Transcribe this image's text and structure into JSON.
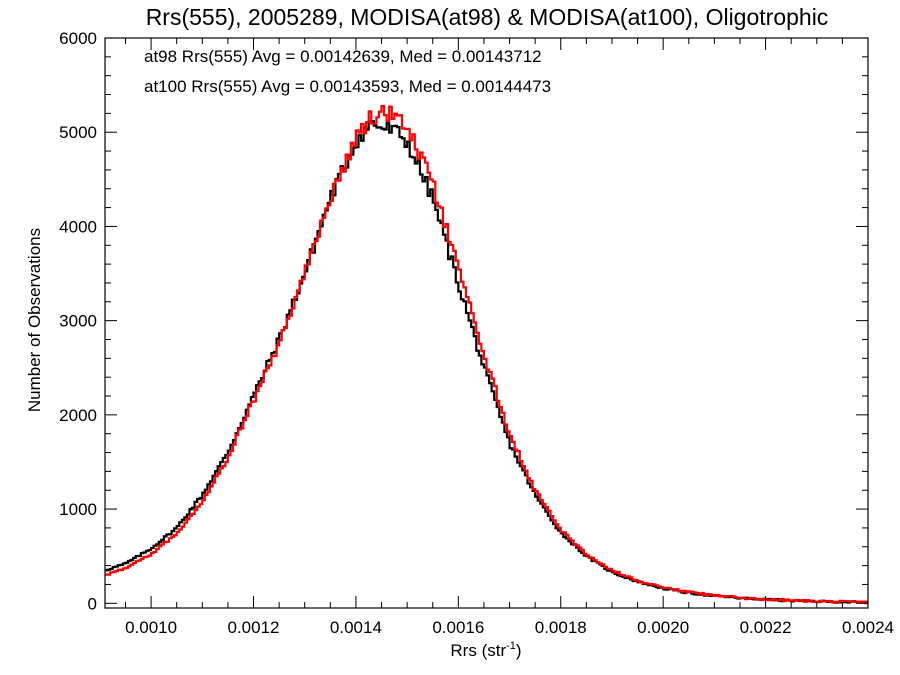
{
  "chart_data": {
    "type": "line",
    "title": "Rrs(555), 2005289, MODISA(at98) & MODISA(at100), Oligotrophic",
    "xlabel_main": "Rrs (str",
    "xlabel_sup": "-1",
    "xlabel_close": ")",
    "ylabel": "Number of Observations",
    "xlim": [
      0.00091,
      0.0024
    ],
    "ylim": [
      -50,
      6000
    ],
    "xticks": [
      0.001,
      0.0012,
      0.0014,
      0.0016,
      0.0018,
      0.002,
      0.0022,
      0.0024
    ],
    "xtick_labels": [
      "0.0010",
      "0.0012",
      "0.0014",
      "0.0016",
      "0.0018",
      "0.0020",
      "0.0022",
      "0.0024"
    ],
    "yticks": [
      0,
      1000,
      2000,
      3000,
      4000,
      5000,
      6000
    ],
    "ytick_labels": [
      "0",
      "1000",
      "2000",
      "3000",
      "4000",
      "5000",
      "6000"
    ],
    "grid": false,
    "legend_position": "top-left",
    "annotations": [
      {
        "text": "at98 Rrs(555) Avg = 0.00142639, Med = 0.00143712",
        "color": "#000000"
      },
      {
        "text": "at100 Rrs(555) Avg = 0.00143593, Med = 0.00144473",
        "color": "#ff0000"
      }
    ],
    "series": [
      {
        "label": "at98",
        "color": "#000000",
        "style": "histogram-step",
        "x": [
          0.00091,
          0.00095,
          0.001,
          0.00105,
          0.0011,
          0.00115,
          0.0012,
          0.00125,
          0.0013,
          0.00135,
          0.0014,
          0.00143,
          0.00145,
          0.00148,
          0.0015,
          0.00155,
          0.0016,
          0.00165,
          0.0017,
          0.00175,
          0.0018,
          0.00185,
          0.0019,
          0.00195,
          0.002,
          0.00205,
          0.0021,
          0.00215,
          0.0022,
          0.00225,
          0.0023,
          0.00235,
          0.0024
        ],
        "y": [
          350,
          420,
          580,
          800,
          1150,
          1600,
          2200,
          2800,
          3500,
          4300,
          4900,
          5100,
          5050,
          5000,
          4900,
          4300,
          3400,
          2500,
          1700,
          1150,
          750,
          500,
          330,
          230,
          160,
          110,
          80,
          55,
          40,
          28,
          20,
          15,
          10
        ]
      },
      {
        "label": "at100",
        "color": "#ff0000",
        "style": "histogram-step",
        "x": [
          0.00091,
          0.00095,
          0.001,
          0.00105,
          0.0011,
          0.00115,
          0.0012,
          0.00125,
          0.0013,
          0.00135,
          0.0014,
          0.00143,
          0.00145,
          0.00148,
          0.0015,
          0.00155,
          0.0016,
          0.00165,
          0.0017,
          0.00175,
          0.0018,
          0.00185,
          0.0019,
          0.00195,
          0.002,
          0.00205,
          0.0021,
          0.00215,
          0.0022,
          0.00225,
          0.0023,
          0.00235,
          0.0024
        ],
        "y": [
          300,
          370,
          520,
          740,
          1080,
          1550,
          2150,
          2750,
          3500,
          4300,
          4950,
          5150,
          5200,
          5200,
          5050,
          4450,
          3550,
          2650,
          1800,
          1200,
          780,
          520,
          350,
          240,
          170,
          120,
          85,
          58,
          42,
          30,
          22,
          15,
          10
        ]
      }
    ]
  }
}
